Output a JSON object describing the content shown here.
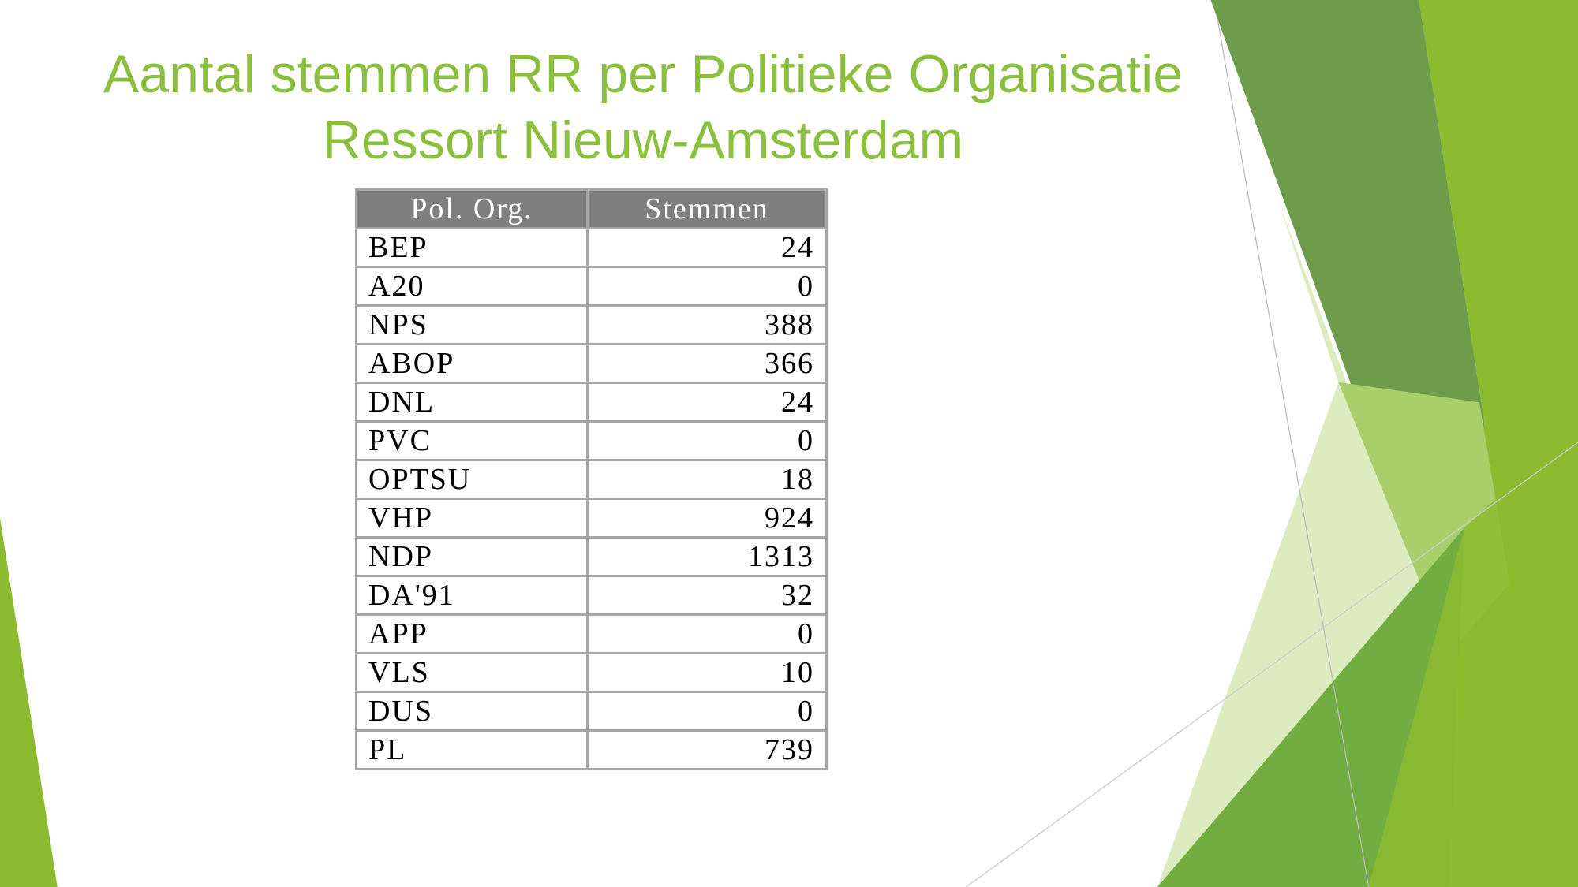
{
  "title": "Aantal stemmen RR per Politieke Organisatie Ressort Nieuw-Amsterdam",
  "table": {
    "header": [
      "Pol. Org.",
      "Stemmen"
    ],
    "rows": [
      [
        "BEP",
        24
      ],
      [
        "A20",
        0
      ],
      [
        "NPS",
        388
      ],
      [
        "ABOP",
        366
      ],
      [
        "DNL",
        24
      ],
      [
        "PVC",
        0
      ],
      [
        "OPTSU",
        18
      ],
      [
        "VHP",
        924
      ],
      [
        "NDP",
        1313
      ],
      [
        "DA'91",
        32
      ],
      [
        "APP",
        0
      ],
      [
        "VLS",
        10
      ],
      [
        "DUS",
        0
      ],
      [
        "PL",
        739
      ]
    ]
  }
}
